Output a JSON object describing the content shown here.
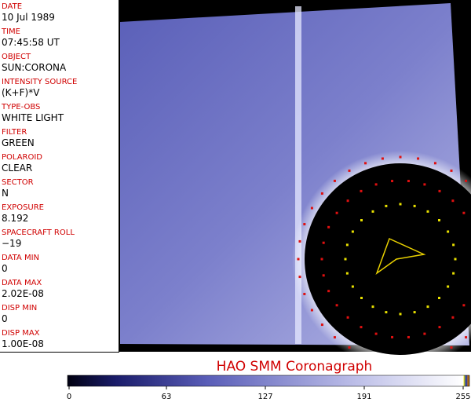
{
  "fields": [
    {
      "label": "DATE",
      "value": "10 Jul 1989"
    },
    {
      "label": "TIME",
      "value": "07:45:58 UT"
    },
    {
      "label": "OBJECT",
      "value": "SUN:CORONA"
    },
    {
      "label": "INTENSITY SOURCE",
      "value": "(K+F)*V"
    },
    {
      "label": "TYPE-OBS",
      "value": "WHITE LIGHT"
    },
    {
      "label": "FILTER",
      "value": "GREEN"
    },
    {
      "label": "POLAROID",
      "value": "CLEAR"
    },
    {
      "label": "SECTOR",
      "value": "N"
    },
    {
      "label": "EXPOSURE",
      "value": "8.192"
    },
    {
      "label": "SPACECRAFT ROLL",
      "value": "−19"
    },
    {
      "label": "DATA MIN",
      "value": "0"
    },
    {
      "label": "DATA MAX",
      "value": "2.02E-08"
    },
    {
      "label": "DISP MIN",
      "value": "0"
    },
    {
      "label": "DISP MAX",
      "value": "1.00E-08"
    }
  ],
  "title": "HAO   SMM Coronagraph",
  "colorbar": {
    "lim": [
      0,
      255
    ],
    "ticks": [
      0,
      63,
      127,
      191,
      255
    ]
  }
}
